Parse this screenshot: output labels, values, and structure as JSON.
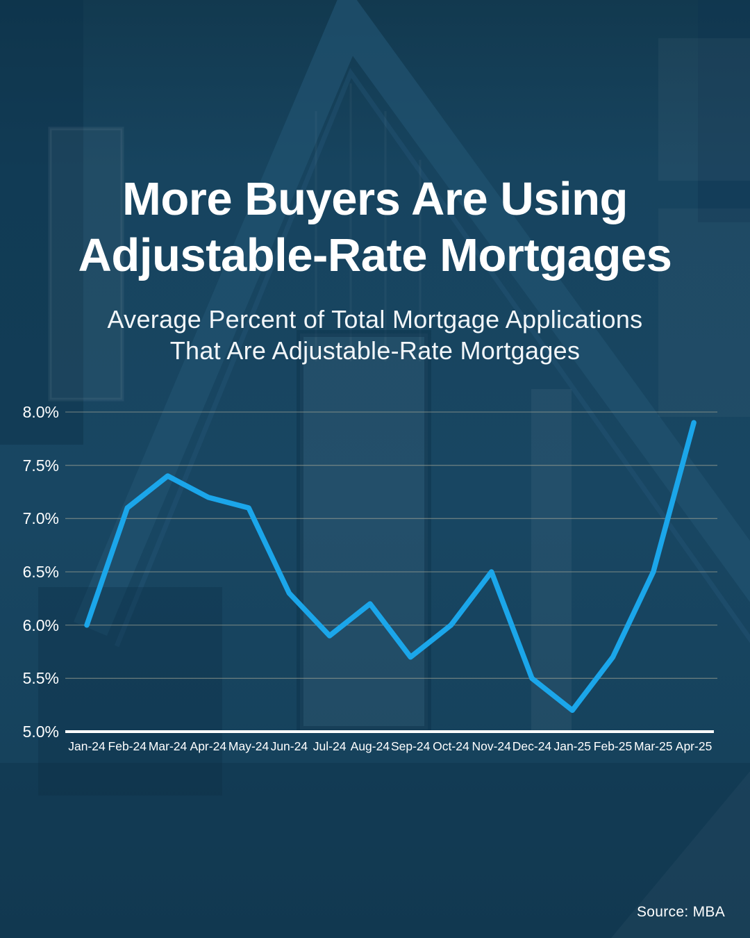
{
  "title": {
    "line1": "More Buyers Are Using",
    "line2": "Adjustable-Rate Mortgages"
  },
  "subtitle": {
    "line1": "Average Percent of Total Mortgage Applications",
    "line2": "That Are Adjustable-Rate Mortgages"
  },
  "source": "Source: MBA",
  "colors": {
    "background": "#174560",
    "line": "#1BA6EA",
    "gridline": "#A9A996",
    "axis_line": "#FFFFFF",
    "text": "#FFFFFF"
  },
  "chart_data": {
    "type": "line",
    "title": "Average Percent of Total Mortgage Applications That Are Adjustable-Rate Mortgages",
    "xlabel": "",
    "ylabel": "",
    "unit": "%",
    "ylim": [
      5.0,
      8.0
    ],
    "grid": true,
    "legend": false,
    "categories": [
      "Jan-24",
      "Feb-24",
      "Mar-24",
      "Apr-24",
      "May-24",
      "Jun-24",
      "Jul-24",
      "Aug-24",
      "Sep-24",
      "Oct-24",
      "Nov-24",
      "Dec-24",
      "Jan-25",
      "Feb-25",
      "Mar-25",
      "Apr-25"
    ],
    "values": [
      6.0,
      7.1,
      7.4,
      7.2,
      7.1,
      6.3,
      5.9,
      6.2,
      5.7,
      6.0,
      6.5,
      5.5,
      5.2,
      5.7,
      6.5,
      7.9
    ],
    "yticks": [
      {
        "value": 8.0,
        "label": "8.0%"
      },
      {
        "value": 7.5,
        "label": "7.5%"
      },
      {
        "value": 7.0,
        "label": "7.0%"
      },
      {
        "value": 6.5,
        "label": "6.5%"
      },
      {
        "value": 6.0,
        "label": "6.0%"
      },
      {
        "value": 5.5,
        "label": "5.5%"
      },
      {
        "value": 5.0,
        "label": "5.0%"
      }
    ]
  }
}
